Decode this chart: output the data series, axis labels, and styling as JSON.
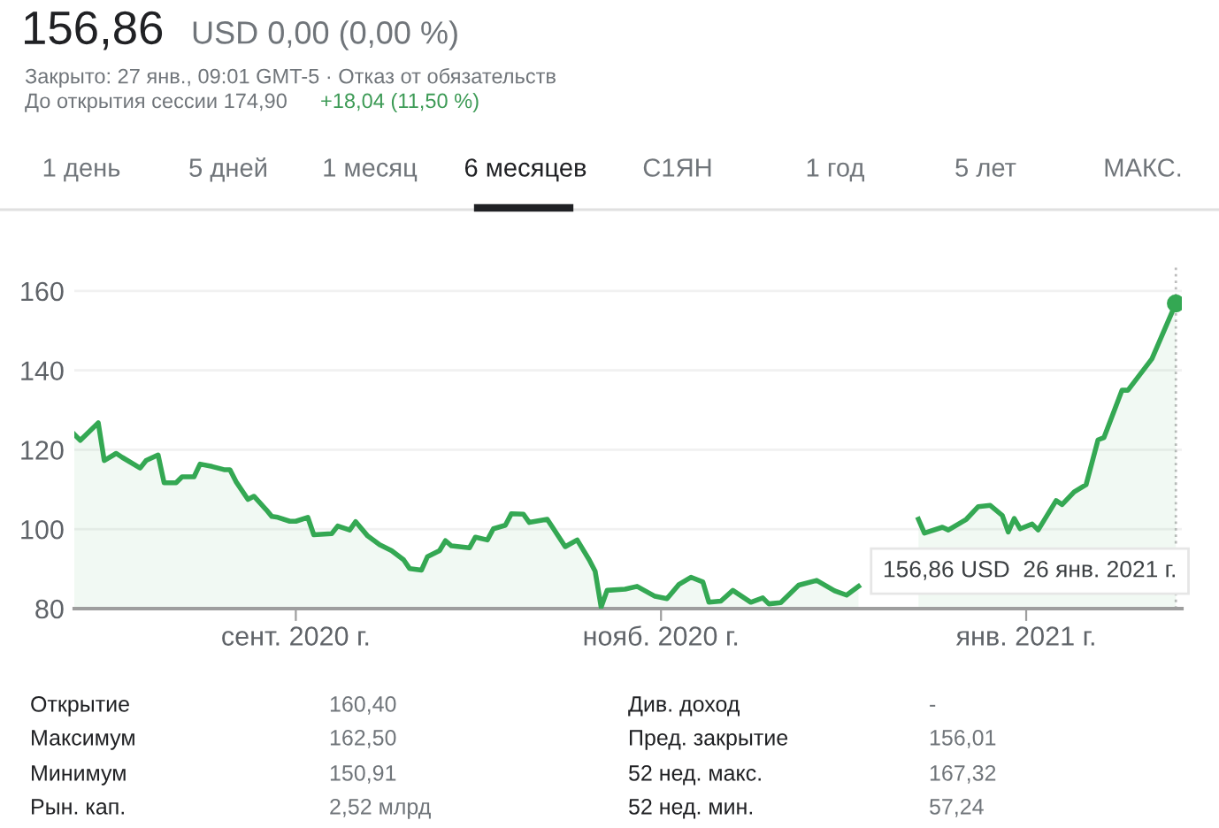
{
  "chart_data": {
    "type": "area",
    "x": [
      "2020-07-26",
      "2020-07-27",
      "2020-07-30",
      "2020-07-31",
      "2020-08-02",
      "2020-08-03",
      "2020-08-06",
      "2020-08-07",
      "2020-08-09",
      "2020-08-10",
      "2020-08-12",
      "2020-08-13",
      "2020-08-15",
      "2020-08-16",
      "2020-08-18",
      "2020-08-20",
      "2020-08-21",
      "2020-08-22",
      "2020-08-24",
      "2020-08-25",
      "2020-08-27",
      "2020-08-28",
      "2020-08-29",
      "2020-08-31",
      "2020-09-01",
      "2020-09-03",
      "2020-09-04",
      "2020-09-07",
      "2020-09-08",
      "2020-09-10",
      "2020-09-11",
      "2020-09-13",
      "2020-09-15",
      "2020-09-17",
      "2020-09-19",
      "2020-09-20",
      "2020-09-22",
      "2020-09-23",
      "2020-09-25",
      "2020-09-26",
      "2020-09-27",
      "2020-09-30",
      "2020-10-01",
      "2020-10-03",
      "2020-10-04",
      "2020-10-06",
      "2020-10-07",
      "2020-10-09",
      "2020-10-10",
      "2020-10-13",
      "2020-10-14",
      "2020-10-16",
      "2020-10-18",
      "2020-10-20",
      "2020-10-21",
      "2020-10-22",
      "2020-10-23",
      "2020-10-26",
      "2020-10-28",
      "2020-10-31",
      "2020-11-02",
      "2020-11-04",
      "2020-11-06",
      "2020-11-08",
      "2020-11-09",
      "2020-11-11",
      "2020-11-13",
      "2020-11-16",
      "2020-11-18",
      "2020-11-19",
      "2020-11-21",
      "2020-11-24",
      "2020-11-27",
      "2020-11-30",
      "2020-12-02",
      "2020-12-04",
      "2020-12-08",
      "2020-12-14",
      "2020-12-15",
      "2020-12-18",
      "2020-12-19",
      "2020-12-22",
      "2020-12-24",
      "2020-12-26",
      "2020-12-28",
      "2020-12-29",
      "2020-12-30",
      "2020-12-31",
      "2021-01-02",
      "2021-01-03",
      "2021-01-06",
      "2021-01-07",
      "2021-01-09",
      "2021-01-11",
      "2021-01-13",
      "2021-01-14",
      "2021-01-16",
      "2021-01-17",
      "2021-01-18",
      "2021-01-22",
      "2021-01-26"
    ],
    "series": [
      {
        "color": "#34a853",
        "values": [
          123.9,
          122.4,
          126.8,
          117.3,
          119.1,
          118.1,
          115.4,
          117.3,
          118.7,
          111.7,
          111.7,
          113.2,
          113.2,
          116.4,
          115.8,
          115.0,
          115.0,
          112.0,
          107.5,
          108.3,
          105.0,
          103.2,
          103.0,
          102.0,
          102.0,
          103.0,
          98.6,
          98.9,
          100.8,
          99.8,
          101.9,
          98.3,
          96.1,
          94.6,
          92.3,
          90.1,
          89.7,
          93.1,
          94.6,
          97.1,
          95.8,
          95.3,
          98.0,
          97.3,
          100.1,
          101.0,
          103.9,
          103.8,
          101.7,
          102.5,
          100.2,
          95.6,
          97.3,
          92.3,
          89.4,
          80.4,
          84.6,
          84.9,
          85.6,
          83.1,
          82.5,
          86.1,
          87.9,
          86.7,
          81.6,
          81.9,
          84.6,
          81.6,
          82.7,
          81.2,
          81.5,
          85.9,
          87.1,
          84.5,
          83.4,
          85.6,
          null,
          102.5,
          99.0,
          100.5,
          99.8,
          102.5,
          105.7,
          106.0,
          103.5,
          99.3,
          102.7,
          100.1,
          101.3,
          99.8,
          107.2,
          106.2,
          109.4,
          111.2,
          122.5,
          123.1,
          131.0,
          135.0,
          135.0,
          142.9,
          156.86
        ]
      },
      {
        "type": "scatter",
        "color": "#34a853",
        "x": [
          "2021-01-26"
        ],
        "values": [
          156.86
        ],
        "marker": "circle"
      }
    ],
    "xlim": [
      "2020-07-26",
      "2021-01-27"
    ],
    "ylim": [
      80,
      166
    ],
    "yticks": [
      80,
      100,
      120,
      140,
      160
    ],
    "xticks": [
      {
        "value": "2020-09-01",
        "label": "сент. 2020 г."
      },
      {
        "value": "2020-11-01",
        "label": "нояб. 2020 г."
      },
      {
        "value": "2021-01-01",
        "label": "янв. 2021 г."
      }
    ],
    "grid": "y",
    "marker": "none",
    "line_style": "solid",
    "ref_lines": [
      {
        "axis": "x",
        "value": "2021-01-26",
        "color": "#bdbdbd",
        "line_style": "dotted"
      }
    ],
    "annotations": [
      "156,86",
      "USD 0,00 (0,00 %)",
      "Закрыто: 27 янв., 09:01 GMT-5 · Отказ от обязательств",
      "До открытия сессии 174,90",
      "+18,04 (11,50 %)",
      "1 день",
      "5 дней",
      "1 месяц",
      "6 месяцев",
      "С1ЯН",
      "1 год",
      "5 лет",
      "МАКС.",
      "156,86 USD  26 янв. 2021 г.",
      "Открытие",
      "160,40",
      "Максимум",
      "162,50",
      "Минимум",
      "150,91",
      "Рын. кап.",
      "2,52 млрд",
      "Див. доход",
      "-",
      "Пред. закрытие",
      "156,01",
      "52 нед. макс.",
      "167,32",
      "52 нед. мин.",
      "57,24"
    ]
  }
}
